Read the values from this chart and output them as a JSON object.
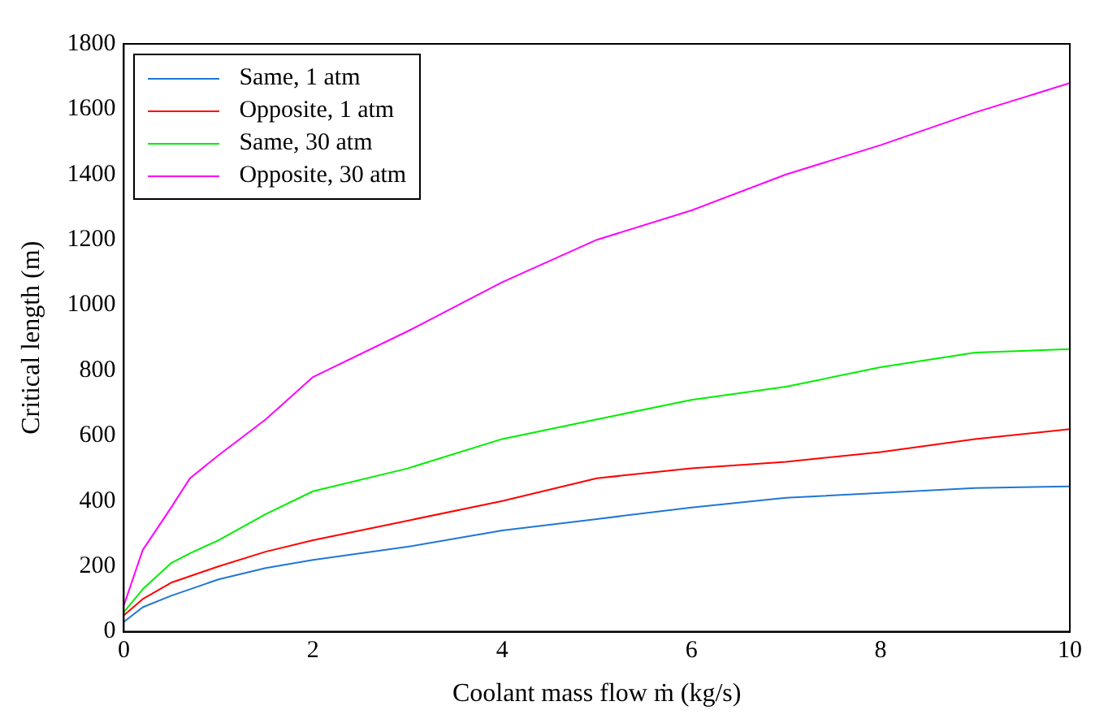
{
  "chart_data": {
    "type": "line",
    "xlabel": "Coolant mass flow ṁ (kg/s)",
    "ylabel": "Critical length (m)",
    "x": [
      0,
      0.2,
      0.5,
      0.7,
      1,
      1.5,
      2,
      3,
      4,
      5,
      6,
      7,
      8,
      9,
      10
    ],
    "series": [
      {
        "name": "Same, 1 atm",
        "color": "#1f77d4",
        "values": [
          30,
          75,
          110,
          130,
          160,
          195,
          220,
          260,
          310,
          345,
          380,
          410,
          425,
          440,
          445
        ]
      },
      {
        "name": "Opposite, 1 atm",
        "color": "#ff0000",
        "values": [
          50,
          100,
          150,
          170,
          200,
          245,
          280,
          340,
          400,
          470,
          500,
          520,
          550,
          590,
          620
        ]
      },
      {
        "name": "Same, 30 atm",
        "color": "#00ee00",
        "values": [
          60,
          130,
          210,
          240,
          280,
          360,
          430,
          500,
          590,
          650,
          710,
          750,
          810,
          855,
          865
        ]
      },
      {
        "name": "Opposite, 30 atm",
        "color": "#ff00ff",
        "values": [
          80,
          250,
          380,
          470,
          540,
          650,
          780,
          920,
          1070,
          1200,
          1290,
          1400,
          1490,
          1590,
          1680
        ]
      }
    ],
    "xlim": [
      0,
      10
    ],
    "xticks": [
      0,
      2,
      4,
      6,
      8,
      10
    ],
    "ylim": [
      0,
      1800
    ],
    "yticks": [
      0,
      200,
      400,
      600,
      800,
      1000,
      1200,
      1400,
      1600,
      1800
    ],
    "grid": false,
    "legend": "top left",
    "marker": "none",
    "line_style": "solid"
  }
}
